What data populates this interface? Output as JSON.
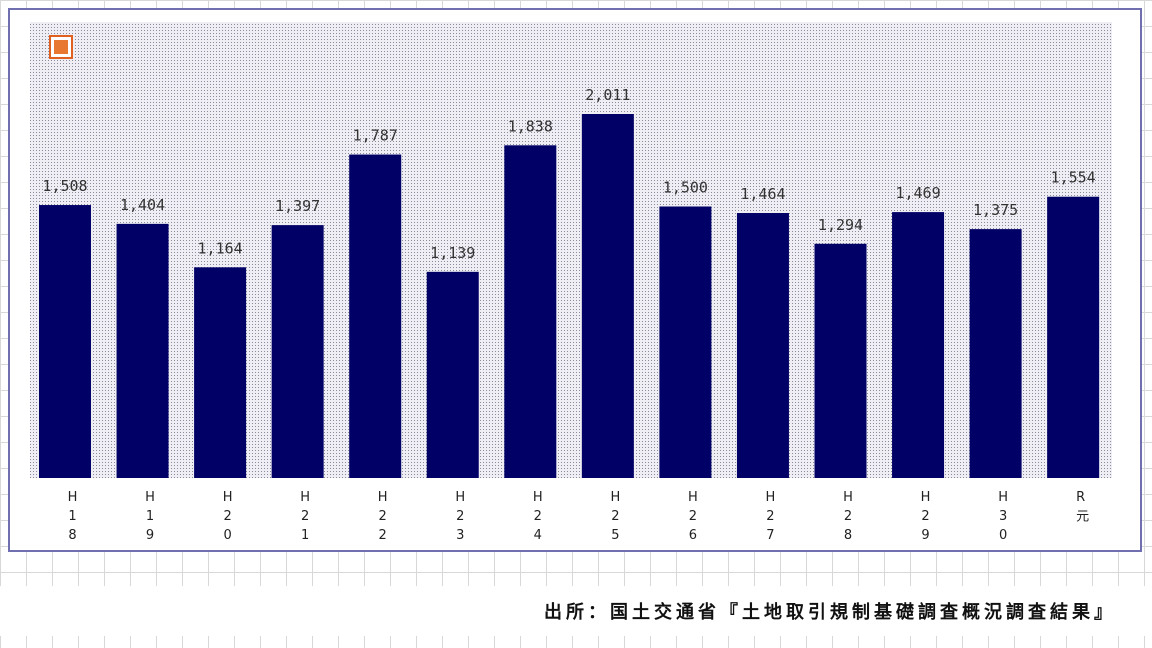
{
  "chart_data": {
    "type": "bar",
    "categories": [
      "H18",
      "H19",
      "H20",
      "H21",
      "H22",
      "H23",
      "H24",
      "H25",
      "H26",
      "H27",
      "H28",
      "H29",
      "H30",
      "R元"
    ],
    "values": [
      1508,
      1404,
      1164,
      1397,
      1787,
      1139,
      1838,
      2011,
      1500,
      1464,
      1294,
      1469,
      1375,
      1554
    ],
    "value_labels": [
      "1,508",
      "1,404",
      "1,164",
      "1,397",
      "1,787",
      "1,139",
      "1,838",
      "2,011",
      "1,500",
      "1,464",
      "1,294",
      "1,469",
      "1,375",
      "1,554"
    ],
    "color": "#000066",
    "source": "出所：国土交通省『土地取引規制基礎調査概況調査結果』"
  }
}
